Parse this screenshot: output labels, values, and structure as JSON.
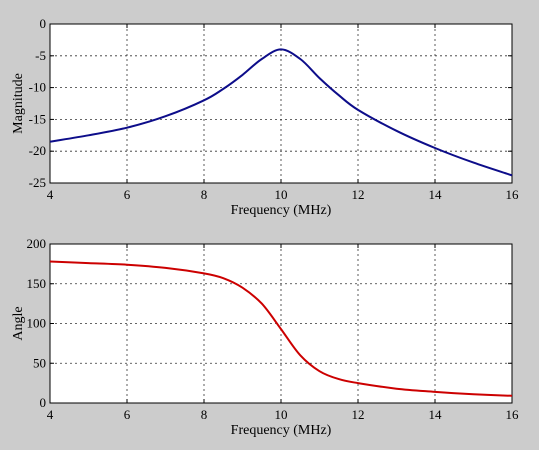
{
  "chart_data": [
    {
      "type": "line",
      "xlabel": "Frequency (MHz)",
      "ylabel": "Magnitude",
      "xlim": [
        4,
        16
      ],
      "ylim": [
        -25,
        0
      ],
      "xticks": [
        4,
        6,
        8,
        10,
        12,
        14,
        16
      ],
      "yticks": [
        0,
        -5,
        -10,
        -15,
        -20,
        -25
      ],
      "grid": true,
      "line_color": "#0d0d8a",
      "series": [
        {
          "x": [
            4,
            5,
            6,
            7,
            8,
            8.5,
            9,
            9.5,
            10,
            10.5,
            11,
            11.5,
            12,
            13,
            14,
            15,
            16
          ],
          "y": [
            -18.5,
            -17.5,
            -16.3,
            -14.5,
            -12.0,
            -10.2,
            -8.0,
            -5.5,
            -4.0,
            -5.5,
            -8.5,
            -11.2,
            -13.5,
            -16.8,
            -19.5,
            -21.8,
            -23.8
          ]
        }
      ]
    },
    {
      "type": "line",
      "xlabel": "Frequency (MHz)",
      "ylabel": "Angle",
      "xlim": [
        4,
        16
      ],
      "ylim": [
        0,
        200
      ],
      "xticks": [
        4,
        6,
        8,
        10,
        12,
        14,
        16
      ],
      "yticks": [
        0,
        50,
        100,
        150,
        200
      ],
      "grid": true,
      "line_color": "#cc0000",
      "series": [
        {
          "x": [
            4,
            5,
            6,
            7,
            8,
            8.5,
            9,
            9.5,
            10,
            10.5,
            11,
            11.5,
            12,
            13,
            14,
            15,
            16
          ],
          "y": [
            178,
            176,
            174,
            170,
            163,
            157,
            145,
            125,
            93,
            60,
            40,
            30,
            25,
            18,
            14,
            11,
            9
          ]
        }
      ]
    }
  ]
}
